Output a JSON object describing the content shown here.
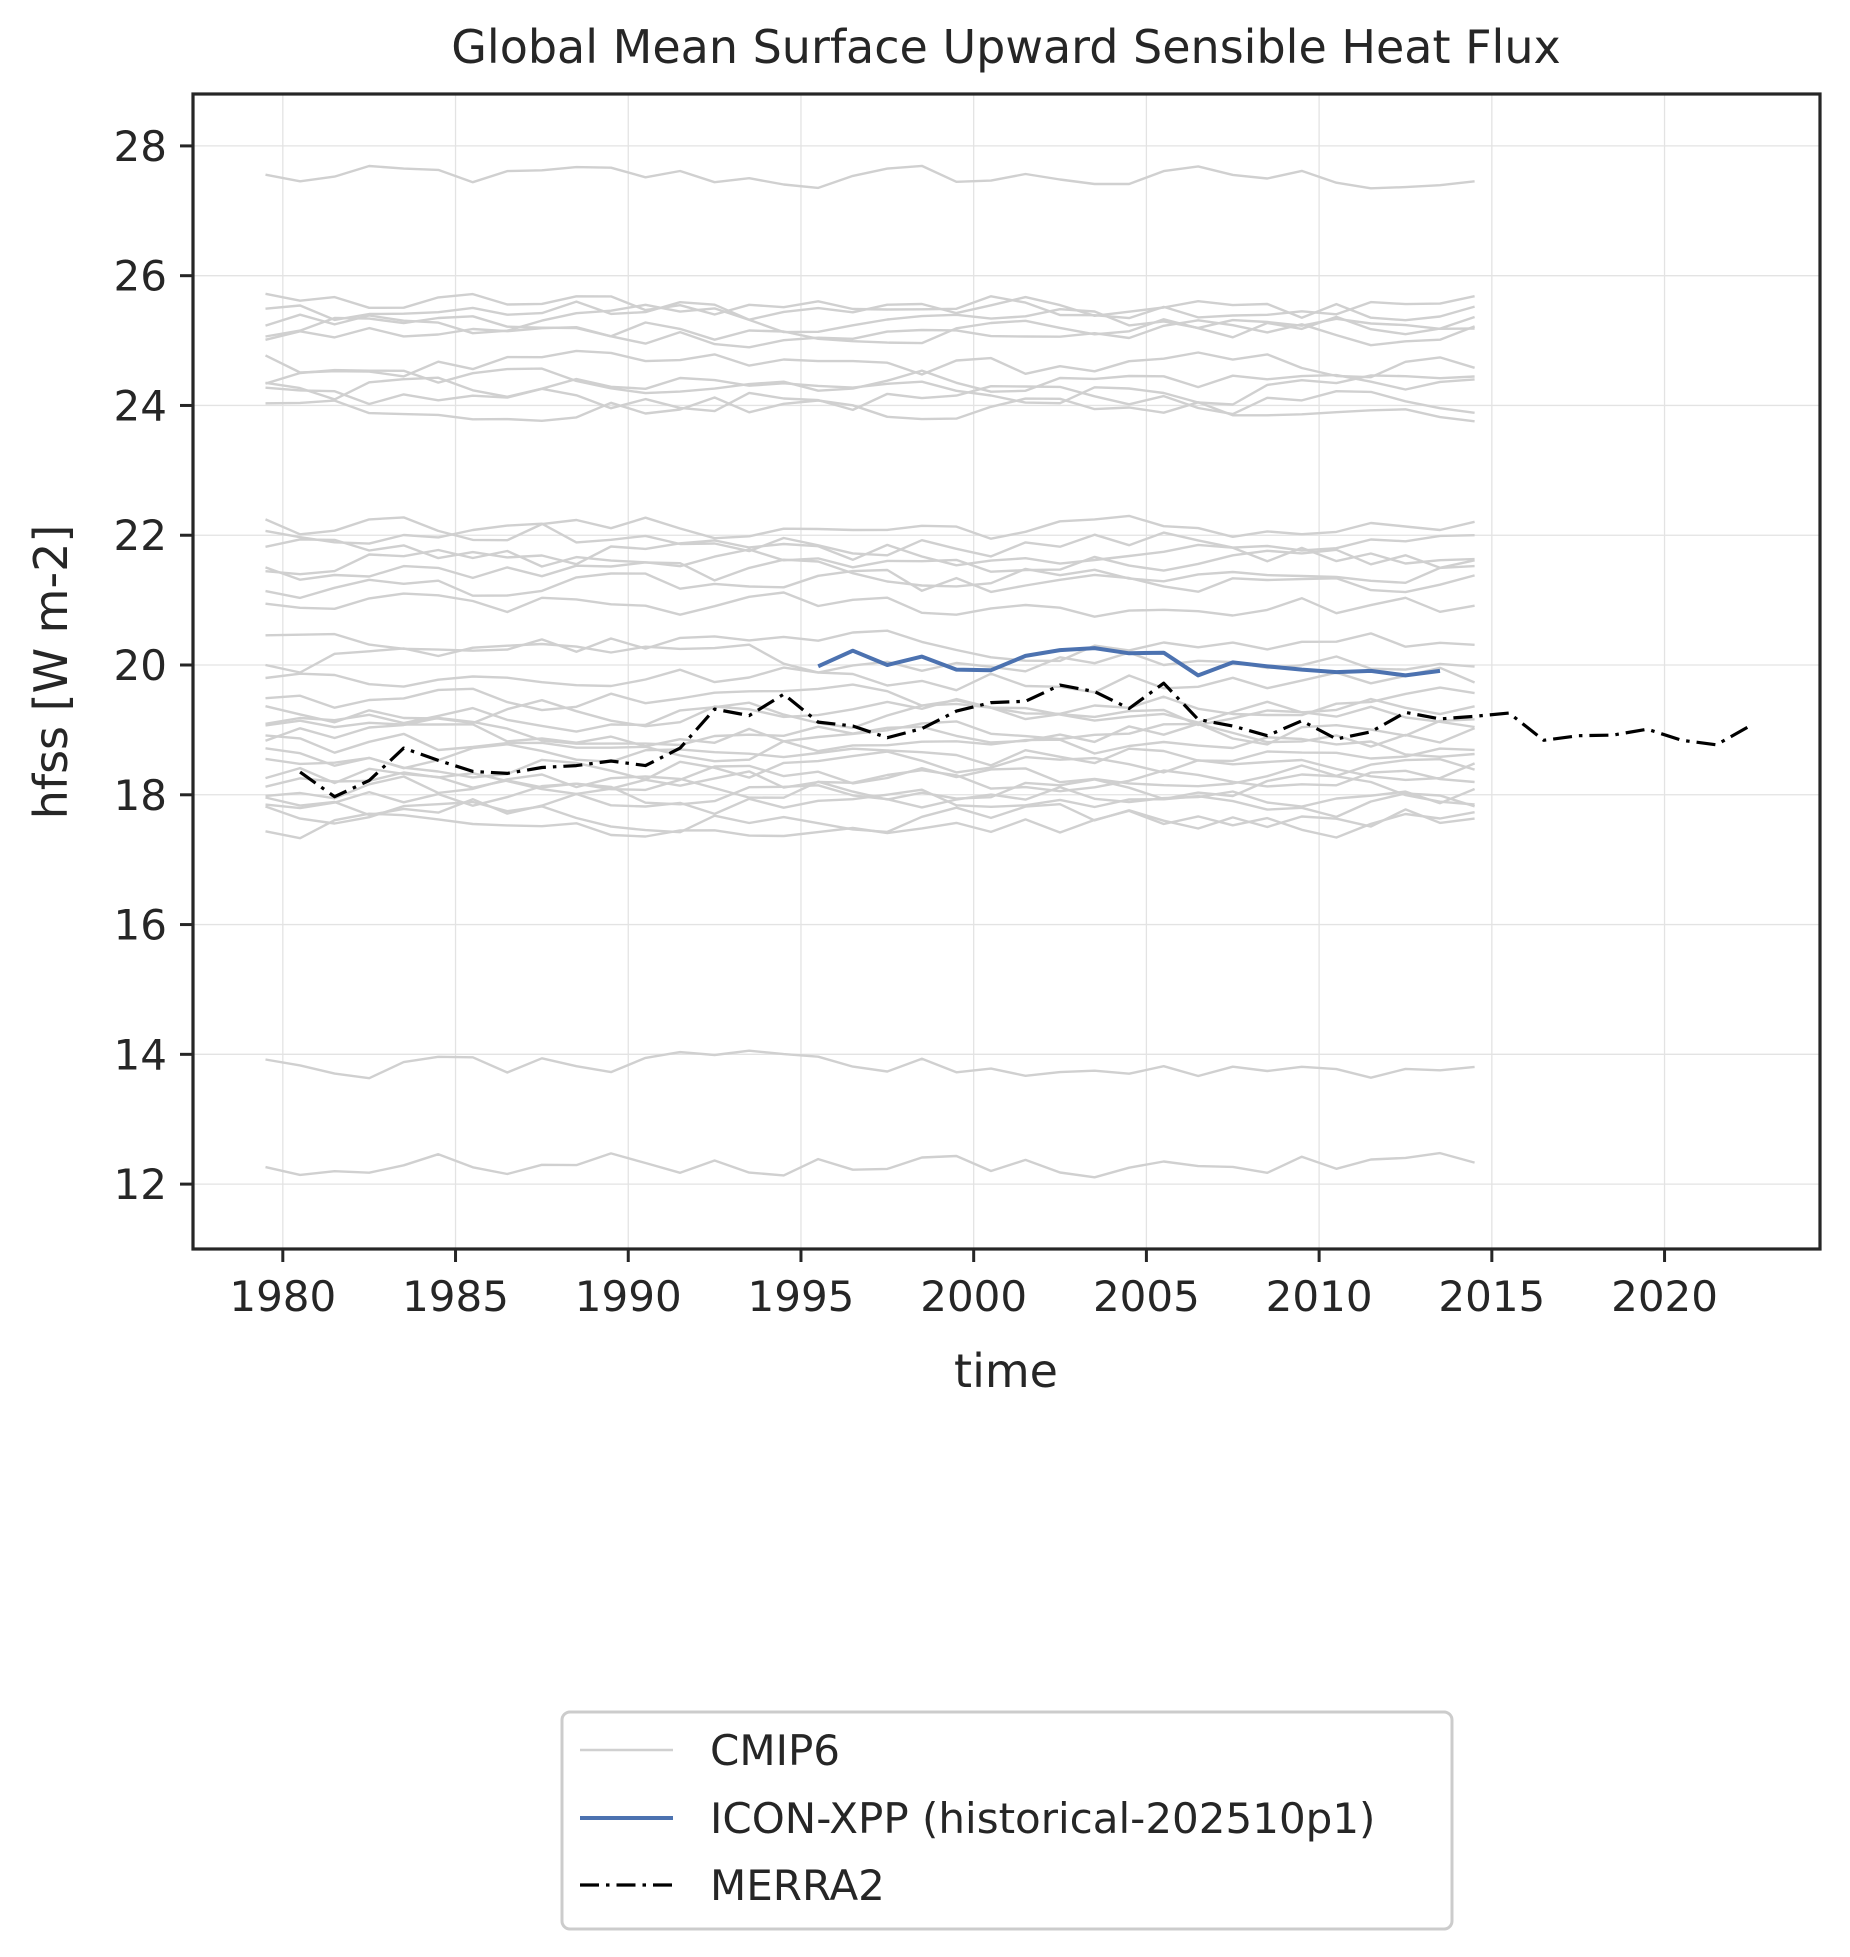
{
  "chart_data": {
    "type": "line",
    "title": "Global Mean Surface Upward Sensible Heat Flux",
    "xlabel": "time",
    "ylabel": "hfss [W m-2]",
    "xlim": [
      1977.4,
      2024.5
    ],
    "ylim": [
      11.0,
      28.8
    ],
    "xticks": [
      1980,
      1985,
      1990,
      1995,
      2000,
      2005,
      2010,
      2015,
      2020
    ],
    "yticks": [
      12,
      14,
      16,
      18,
      20,
      22,
      24,
      26,
      28
    ],
    "grid": true,
    "legend_position": "bottom-center",
    "cmip6_years": [
      1979.5,
      2014.5
    ],
    "cmip6_baselines": [
      27.5,
      25.55,
      25.45,
      25.3,
      25.2,
      25.1,
      24.6,
      24.4,
      24.25,
      24.1,
      24.0,
      22.1,
      21.9,
      21.75,
      21.6,
      21.4,
      21.2,
      20.9,
      20.3,
      20.1,
      19.8,
      19.5,
      19.3,
      19.2,
      19.0,
      18.9,
      18.75,
      18.6,
      18.45,
      18.3,
      18.2,
      18.1,
      18.0,
      17.85,
      17.7,
      17.55,
      13.8,
      12.3
    ],
    "series": [
      {
        "name": "CMIP6",
        "color": "#d0d0d0",
        "style": "solid"
      },
      {
        "name": "ICON-XPP (historical-202510p1)",
        "color": "#4c72b0",
        "style": "solid",
        "x": [
          1995.5,
          1996.5,
          1997.5,
          1998.5,
          1999.5,
          2000.5,
          2001.5,
          2002.5,
          2003.5,
          2004.5,
          2005.5,
          2006.5,
          2007.5,
          2008.5,
          2009.5,
          2010.5,
          2011.5,
          2012.5,
          2013.5
        ],
        "y": [
          19.98,
          20.22,
          20.0,
          20.13,
          19.93,
          19.92,
          20.14,
          20.23,
          20.26,
          20.18,
          20.19,
          19.84,
          20.04,
          19.98,
          19.93,
          19.89,
          19.91,
          19.84,
          19.91
        ]
      },
      {
        "name": "MERRA2",
        "color": "#000000",
        "style": "dashdot",
        "x": [
          1980.5,
          1981.5,
          1982.5,
          1983.5,
          1984.5,
          1985.5,
          1986.5,
          1987.5,
          1988.5,
          1989.5,
          1990.5,
          1991.5,
          1992.5,
          1993.5,
          1994.5,
          1995.5,
          1996.5,
          1997.5,
          1998.5,
          1999.5,
          2000.5,
          2001.5,
          2002.5,
          2003.5,
          2004.5,
          2005.5,
          2006.5,
          2007.5,
          2008.5,
          2009.5,
          2010.5,
          2011.5,
          2012.5,
          2013.5,
          2014.5,
          2015.5,
          2016.5,
          2017.5,
          2018.5,
          2019.5,
          2020.5,
          2021.5,
          2022.5
        ],
        "y": [
          18.35,
          17.97,
          18.22,
          18.72,
          18.53,
          18.36,
          18.33,
          18.42,
          18.45,
          18.52,
          18.45,
          18.72,
          19.32,
          19.22,
          19.55,
          19.12,
          19.06,
          18.88,
          19.02,
          19.29,
          19.42,
          19.44,
          19.69,
          19.59,
          19.33,
          19.72,
          19.16,
          19.06,
          18.91,
          19.14,
          18.86,
          18.97,
          19.27,
          19.17,
          19.21,
          19.26,
          18.84,
          18.91,
          18.92,
          19.01,
          18.84,
          18.77,
          19.07
        ]
      }
    ]
  }
}
